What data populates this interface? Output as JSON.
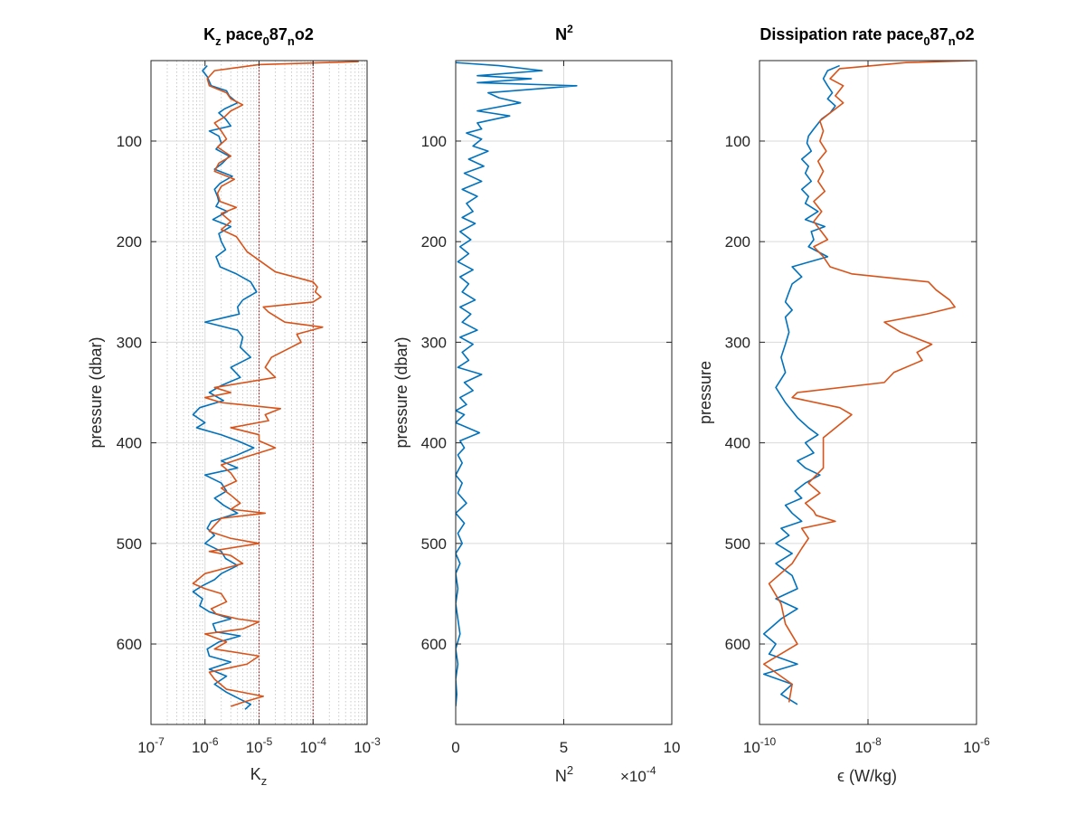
{
  "chart_data": [
    {
      "type": "line",
      "title_parts": [
        "K",
        "z",
        " pace",
        "0",
        "87",
        "n",
        "o2"
      ],
      "xlabel_parts": [
        "K",
        "z"
      ],
      "ylabel": "pressure (dbar)",
      "xscale": "log",
      "xlim": [
        1e-07,
        0.001
      ],
      "ylim": [
        20,
        680
      ],
      "y_reversed": true,
      "xtick_base": "10",
      "xtick_exponents": [
        "-7",
        "-6",
        "-5",
        "-4",
        "-3"
      ],
      "ytick_labels": [
        "100",
        "200",
        "300",
        "400",
        "500",
        "600"
      ],
      "grid": "major and minor (x)",
      "reference_lines_x": [
        1e-05,
        0.0001
      ],
      "colors": {
        "series_1": "#0072BD",
        "series_2": "#D95319",
        "reference": "#C00000"
      },
      "series": [
        {
          "x": [
            1.1e-06,
            9e-07,
            1.1e-06,
            1.3e-06,
            2.5e-06,
            2.8e-06,
            4e-06,
            2.3e-06,
            1.8e-06,
            2.4e-06,
            3e-06,
            1.2e-06,
            1.8e-06,
            2e-06,
            1.6e-06,
            2.8e-06,
            2.1e-06,
            1.5e-06,
            3.2e-06,
            1.9e-06,
            1.5e-06,
            1.7e-06,
            1.8e-06,
            1.6e-06,
            2.6e-06,
            1.4e-06,
            3e-06,
            1.8e-06,
            2e-06,
            2.4e-06,
            1.6e-06,
            1.9e-06,
            3.8e-06,
            7e-06,
            9e-06,
            5e-06,
            4e-06,
            4.3e-06,
            1e-06,
            4e-06,
            5e-06,
            4.5e-06,
            7e-06,
            3e-06,
            4.5e-06,
            2e-06,
            1.2e-06,
            2.2e-06,
            8e-07,
            6e-07,
            1e-06,
            7e-07,
            2e-06,
            4e-06,
            8e-06,
            4e-06,
            2e-06,
            4e-06,
            1e-06,
            2e-06,
            2.5e-06,
            1.5e-06,
            2.2e-06,
            4e-06,
            1.3e-06,
            1.1e-06,
            1.5e-06,
            1e-06,
            2e-06,
            2.4e-06,
            4e-06,
            2e-06,
            1.5e-06,
            9e-07,
            6e-07,
            9e-07,
            8e-07,
            1.2e-06,
            3e-06,
            1.4e-06,
            1.6e-06,
            4.5e-06,
            1.8e-06,
            1.1e-06,
            1.2e-06,
            3e-06,
            1.2e-06,
            2.5e-06,
            1.5e-06,
            2.5e-06,
            4.5e-06,
            7e-06,
            5.5e-06
          ],
          "y": [
            25,
            30,
            36,
            45,
            50,
            55,
            62,
            68,
            72,
            78,
            85,
            90,
            95,
            102,
            108,
            115,
            122,
            128,
            135,
            142,
            148,
            155,
            160,
            165,
            170,
            178,
            185,
            192,
            200,
            208,
            215,
            225,
            232,
            240,
            250,
            258,
            265,
            272,
            280,
            288,
            295,
            305,
            315,
            325,
            335,
            343,
            350,
            358,
            365,
            372,
            380,
            385,
            392,
            398,
            405,
            412,
            418,
            425,
            432,
            440,
            448,
            455,
            462,
            470,
            478,
            485,
            492,
            500,
            508,
            515,
            522,
            530,
            536,
            542,
            548,
            555,
            562,
            568,
            575,
            580,
            588,
            592,
            598,
            605,
            612,
            618,
            625,
            632,
            640,
            648,
            655,
            660,
            665
          ]
        },
        {
          "x": [
            0.0007,
            1e-05,
            1.5e-06,
            1.1e-06,
            1.2e-06,
            2.5e-06,
            3e-06,
            5e-06,
            3e-06,
            2.3e-06,
            1.5e-06,
            2e-06,
            2.5e-06,
            1.7e-06,
            3e-06,
            1.8e-06,
            1.5e-06,
            3.5e-06,
            2e-06,
            1.7e-06,
            1.9e-06,
            3.8e-06,
            2e-06,
            3e-06,
            2e-06,
            3.8e-06,
            6e-06,
            2e-05,
            0.0001,
            0.00012,
            0.00011,
            0.00014,
            0.0001,
            1.2e-05,
            1.5e-05,
            3e-05,
            0.00015,
            5e-05,
            6e-05,
            1.7e-05,
            1.3e-05,
            2e-05,
            1.5e-06,
            3e-06,
            1e-06,
            2e-06,
            2.5e-05,
            1.3e-05,
            1.5e-05,
            3e-06,
            1e-05,
            1e-05,
            2e-05,
            5e-06,
            2e-06,
            3e-06,
            3.8e-06,
            2e-06,
            3e-06,
            4.5e-06,
            3e-06,
            1.3e-05,
            2e-06,
            1.5e-06,
            1.2e-06,
            3e-06,
            1e-05,
            1.2e-06,
            3e-06,
            5e-06,
            1e-06,
            6e-07,
            1e-06,
            2e-06,
            2.5e-06,
            1.3e-06,
            1.6e-06,
            4e-06,
            1e-05,
            5e-06,
            1e-06,
            2.5e-06,
            1.5e-06,
            1e-05,
            6e-06,
            1.2e-06,
            1.5e-06,
            2.5e-06,
            1.2e-05,
            5e-06,
            3e-06
          ],
          "y": [
            21,
            24,
            30,
            38,
            45,
            52,
            58,
            64,
            70,
            76,
            82,
            90,
            98,
            106,
            115,
            122,
            130,
            138,
            145,
            152,
            160,
            166,
            172,
            180,
            188,
            195,
            210,
            230,
            240,
            245,
            250,
            255,
            260,
            265,
            270,
            280,
            285,
            292,
            300,
            315,
            325,
            335,
            345,
            350,
            355,
            360,
            366,
            372,
            378,
            385,
            392,
            398,
            405,
            415,
            422,
            430,
            438,
            445,
            452,
            460,
            466,
            470,
            475,
            482,
            488,
            495,
            500,
            508,
            512,
            520,
            530,
            540,
            545,
            550,
            558,
            565,
            570,
            575,
            578,
            585,
            590,
            598,
            605,
            612,
            620,
            628,
            635,
            645,
            652,
            658,
            662
          ]
        }
      ]
    },
    {
      "type": "line",
      "title_base": "N",
      "title_exp": "2",
      "xlabel_base": "N",
      "xlabel_exp": "2",
      "ylabel": "pressure (dbar)",
      "xscale": "linear",
      "xlim": [
        0,
        10
      ],
      "ylim": [
        20,
        680
      ],
      "y_reversed": true,
      "x_multiplier_base": "×10",
      "x_multiplier_exp": "-4",
      "xtick_labels": [
        "0",
        "5",
        "10"
      ],
      "ytick_labels": [
        "100",
        "200",
        "300",
        "400",
        "500",
        "600"
      ],
      "grid": "major",
      "colors": {
        "series_1": "#0072BD"
      },
      "series": [
        {
          "x": [
            0,
            2,
            4,
            1,
            3.5,
            1,
            5.6,
            1.5,
            2,
            3,
            1,
            2.5,
            1,
            1.2,
            0.5,
            1.2,
            0.8,
            1.5,
            0.6,
            1.3,
            0.4,
            1.2,
            0.3,
            1,
            0.5,
            0.8,
            0.3,
            0.9,
            0.2,
            0.7,
            0.2,
            0.6,
            0.1,
            0.8,
            0.2,
            0.6,
            0.3,
            0.9,
            0.2,
            0.7,
            0.3,
            1,
            0.2,
            0.8,
            0.3,
            0.6,
            0.1,
            1.2,
            0.4,
            0.8,
            0.2,
            0.5,
            0,
            0.4,
            0,
            1.1,
            0.2,
            0.4,
            0.1,
            0.3,
            0,
            0.3,
            0.1,
            0.5,
            0,
            0.4,
            0.1,
            0.3,
            0,
            0.2,
            0,
            0.1,
            0,
            0.1,
            0.2,
            0,
            0.1,
            0,
            0.05,
            0
          ],
          "y": [
            22,
            25,
            30,
            35,
            38,
            42,
            45,
            52,
            57,
            62,
            70,
            75,
            82,
            88,
            92,
            98,
            105,
            110,
            118,
            125,
            132,
            140,
            148,
            155,
            162,
            170,
            176,
            182,
            190,
            198,
            205,
            212,
            220,
            228,
            235,
            242,
            250,
            258,
            265,
            272,
            280,
            288,
            295,
            302,
            310,
            318,
            325,
            332,
            340,
            348,
            355,
            362,
            368,
            372,
            380,
            390,
            398,
            405,
            412,
            420,
            432,
            440,
            450,
            460,
            470,
            480,
            490,
            500,
            510,
            520,
            530,
            545,
            560,
            575,
            590,
            605,
            620,
            635,
            650,
            662
          ]
        }
      ]
    },
    {
      "type": "line",
      "title_parts": [
        "Dissipation rate pace",
        "0",
        "87",
        "n",
        "o2"
      ],
      "xlabel": "ϵ (W/kg)",
      "ylabel": "pressure",
      "xscale": "log",
      "xlim": [
        1e-10,
        1e-06
      ],
      "ylim": [
        20,
        680
      ],
      "y_reversed": true,
      "xtick_base": "10",
      "xtick_exponents": [
        "-10",
        "-8",
        "-6"
      ],
      "ytick_labels": [
        "100",
        "200",
        "300",
        "400",
        "500",
        "600"
      ],
      "grid": "major",
      "colors": {
        "series_1": "#0072BD",
        "series_2": "#D95319"
      },
      "series": [
        {
          "x": [
            3e-09,
            1.8e-09,
            1.5e-09,
            1.8e-09,
            2.2e-09,
            1.8e-09,
            2.5e-09,
            2e-09,
            1.4e-09,
            1e-09,
            8e-10,
            7.5e-10,
            9e-10,
            6e-10,
            8e-10,
            7e-10,
            9e-10,
            6e-10,
            8e-10,
            7e-10,
            1.2e-09,
            7e-10,
            1.6e-09,
            9e-10,
            1e-09,
            8e-10,
            1.8e-09,
            4e-10,
            6e-10,
            4e-10,
            3.5e-10,
            3e-10,
            4e-10,
            3e-10,
            3.5e-10,
            3e-10,
            2.5e-10,
            3e-10,
            2e-10,
            3e-10,
            5e-10,
            8e-10,
            1.2e-09,
            7e-10,
            1e-09,
            5e-10,
            7e-10,
            1.3e-09,
            7e-10,
            4.5e-10,
            6e-10,
            3e-10,
            4e-10,
            6e-10,
            2.5e-10,
            3.5e-10,
            2e-10,
            4e-10,
            2e-10,
            4e-10,
            5e-10,
            2e-10,
            5e-10,
            2.5e-10,
            1.2e-10,
            2e-10,
            1.5e-10,
            5e-10,
            1.2e-10,
            4e-10,
            2.5e-10,
            5e-10
          ],
          "y": [
            25,
            30,
            38,
            45,
            52,
            58,
            65,
            72,
            78,
            88,
            95,
            102,
            110,
            118,
            125,
            132,
            140,
            148,
            155,
            162,
            170,
            178,
            185,
            190,
            198,
            205,
            215,
            225,
            235,
            242,
            250,
            260,
            268,
            275,
            290,
            302,
            315,
            330,
            345,
            360,
            375,
            385,
            392,
            400,
            410,
            418,
            425,
            432,
            440,
            448,
            455,
            462,
            470,
            478,
            485,
            492,
            500,
            510,
            520,
            532,
            545,
            555,
            565,
            575,
            590,
            600,
            610,
            620,
            630,
            640,
            650,
            660
          ]
        },
        {
          "x": [
            9e-07,
            5e-08,
            3e-09,
            2e-09,
            3.5e-09,
            2.5e-09,
            3.5e-09,
            2e-09,
            1.3e-09,
            1.5e-09,
            1.3e-09,
            1.7e-09,
            1.2e-09,
            1.5e-09,
            1.2e-09,
            1.6e-09,
            1e-09,
            1.4e-09,
            1e-09,
            1.3e-09,
            1.8e-09,
            1e-09,
            1.5e-09,
            2e-09,
            5e-09,
            1.3e-07,
            1.8e-07,
            3.2e-07,
            4e-07,
            1.2e-07,
            2e-08,
            4e-08,
            1.5e-07,
            8e-08,
            1e-07,
            3e-08,
            2e-08,
            5e-10,
            4e-10,
            3e-09,
            5e-09,
            1.5e-09,
            1.5e-09,
            1.5e-09,
            8e-10,
            1.3e-09,
            7e-10,
            1e-09,
            1.1e-09,
            2.5e-09,
            6e-10,
            8e-10,
            6e-10,
            4e-10,
            1.5e-10,
            2.5e-10,
            3e-10,
            5e-10,
            1.2e-10,
            4e-10,
            3.5e-10
          ],
          "y": [
            20,
            22,
            28,
            38,
            45,
            55,
            62,
            72,
            80,
            90,
            100,
            110,
            120,
            130,
            140,
            150,
            160,
            170,
            180,
            188,
            198,
            205,
            215,
            225,
            232,
            240,
            248,
            258,
            265,
            272,
            280,
            290,
            302,
            310,
            318,
            330,
            340,
            350,
            355,
            365,
            372,
            395,
            412,
            425,
            440,
            450,
            460,
            468,
            472,
            478,
            485,
            495,
            505,
            520,
            540,
            560,
            580,
            600,
            620,
            640,
            658
          ]
        }
      ]
    }
  ]
}
